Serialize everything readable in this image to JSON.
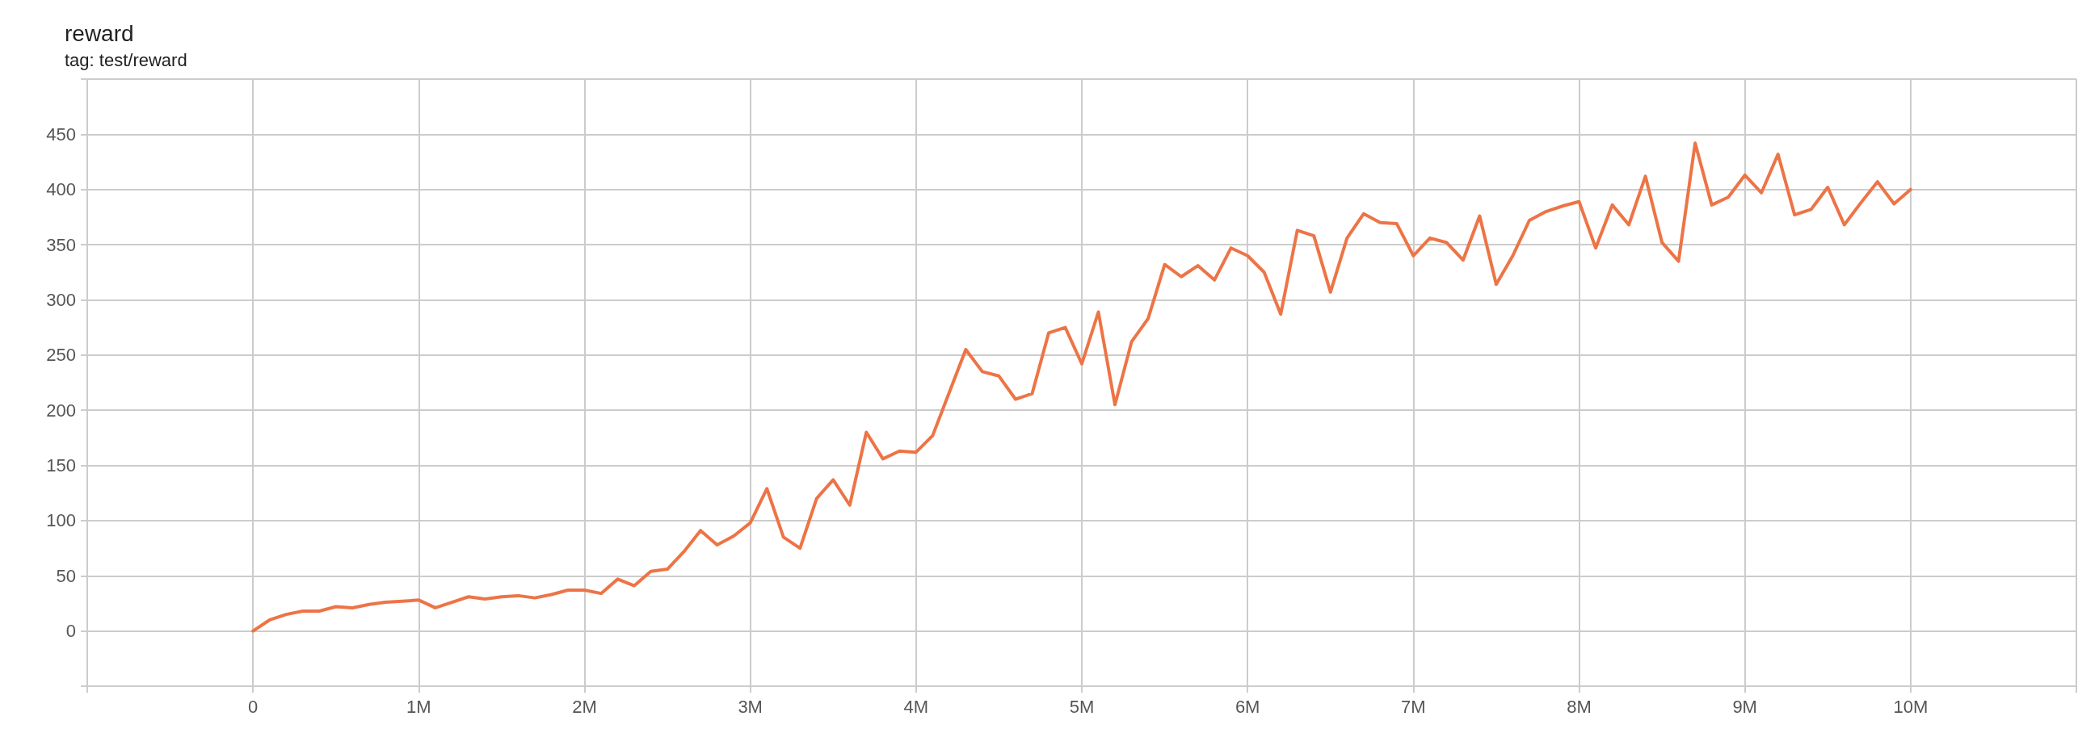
{
  "chart_data": {
    "type": "line",
    "title": "reward",
    "subtitle": "tag: test/reward",
    "x": [
      0,
      100000,
      200000,
      300000,
      400000,
      500000,
      600000,
      700000,
      800000,
      900000,
      1000000,
      1100000,
      1200000,
      1300000,
      1400000,
      1500000,
      1600000,
      1700000,
      1800000,
      1900000,
      2000000,
      2100000,
      2200000,
      2300000,
      2400000,
      2500000,
      2600000,
      2700000,
      2800000,
      2900000,
      3000000,
      3100000,
      3200000,
      3300000,
      3400000,
      3500000,
      3600000,
      3700000,
      3800000,
      3900000,
      4000000,
      4100000,
      4200000,
      4300000,
      4400000,
      4500000,
      4600000,
      4700000,
      4800000,
      4900000,
      5000000,
      5100000,
      5200000,
      5300000,
      5400000,
      5500000,
      5600000,
      5700000,
      5800000,
      5900000,
      6000000,
      6100000,
      6200000,
      6300000,
      6400000,
      6500000,
      6600000,
      6700000,
      6800000,
      6900000,
      7000000,
      7100000,
      7200000,
      7300000,
      7400000,
      7500000,
      7600000,
      7700000,
      7800000,
      7900000,
      8000000,
      8100000,
      8200000,
      8300000,
      8400000,
      8500000,
      8600000,
      8700000,
      8800000,
      8900000,
      9000000,
      9100000,
      9200000,
      9300000,
      9400000,
      9500000,
      9600000,
      9700000,
      9800000,
      9900000,
      10000000
    ],
    "series": [
      {
        "color": "#ed7446",
        "values": [
          0,
          10,
          15,
          18,
          18,
          22,
          21,
          24,
          26,
          27,
          28,
          21,
          26,
          31,
          29,
          31,
          32,
          30,
          33,
          37,
          37,
          34,
          47,
          41,
          54,
          56,
          72,
          91,
          78,
          86,
          98,
          129,
          85,
          75,
          120,
          137,
          114,
          180,
          156,
          163,
          162,
          177,
          216,
          255,
          235,
          231,
          210,
          215,
          270,
          275,
          242,
          289,
          205,
          262,
          283,
          332,
          321,
          331,
          318,
          347,
          340,
          325,
          287,
          363,
          358,
          307,
          356,
          378,
          370,
          369,
          340,
          356,
          352,
          336,
          376,
          314,
          340,
          372,
          380,
          385,
          389,
          347,
          386,
          368,
          412,
          352,
          335,
          442,
          386,
          393,
          413,
          397,
          432,
          377,
          382,
          402,
          368,
          388,
          407,
          387,
          400
        ]
      }
    ],
    "xlim": [
      -1000000,
      11000000
    ],
    "xticks": [
      {
        "value": -1000000,
        "label": null
      },
      0,
      {
        "value": 1000000,
        "label": "1M"
      },
      {
        "value": 2000000,
        "label": "2M"
      },
      {
        "value": 3000000,
        "label": "3M"
      },
      {
        "value": 4000000,
        "label": "4M"
      },
      {
        "value": 5000000,
        "label": "5M"
      },
      {
        "value": 6000000,
        "label": "6M"
      },
      {
        "value": 7000000,
        "label": "7M"
      },
      {
        "value": 8000000,
        "label": "8M"
      },
      {
        "value": 9000000,
        "label": "9M"
      },
      {
        "value": 10000000,
        "label": "10M"
      },
      {
        "value": 11000000,
        "label": null
      }
    ],
    "ylim": [
      -50,
      500
    ],
    "yticks": [
      {
        "value": -50,
        "label": null
      },
      0,
      50,
      100,
      150,
      200,
      250,
      300,
      350,
      400,
      450,
      {
        "value": 500,
        "label": null
      }
    ],
    "grid": true
  }
}
